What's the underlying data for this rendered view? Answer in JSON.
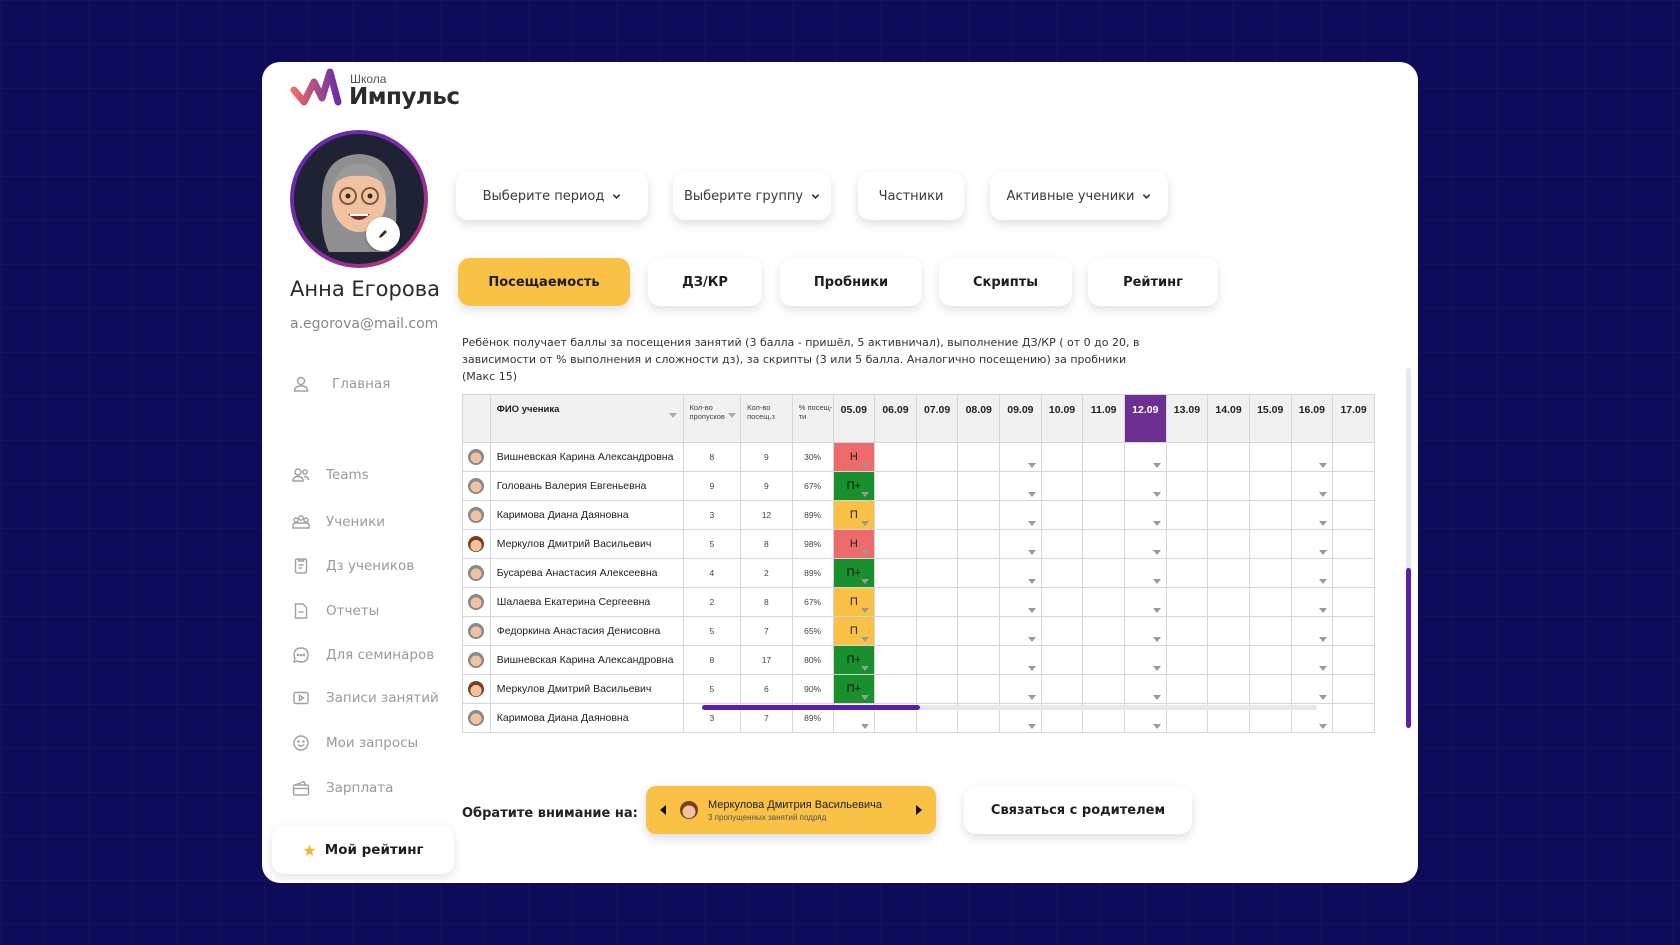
{
  "brand": {
    "small": "Школа",
    "name": "Импульс",
    "accent": "#6b3091"
  },
  "profile": {
    "name": "Анна Егорова",
    "email": "a.egorova@mail.com"
  },
  "sidebar": {
    "items": [
      {
        "label": "Главная",
        "icon": "user-icon"
      },
      {
        "label": "Teams",
        "icon": "team-icon"
      },
      {
        "label": "Ученики",
        "icon": "students-icon"
      },
      {
        "label": "Дз учеников",
        "icon": "clipboard-icon"
      },
      {
        "label": "Отчеты",
        "icon": "document-icon"
      },
      {
        "label": "Для семинаров",
        "icon": "chat-icon"
      },
      {
        "label": "Записи занятий",
        "icon": "video-icon"
      },
      {
        "label": "Мои запросы",
        "icon": "smile-icon"
      },
      {
        "label": "Зарплата",
        "icon": "wallet-icon"
      }
    ],
    "rating_button": "Мой рейтинг"
  },
  "filters": {
    "period": "Выберите период",
    "group": "Выберите группу",
    "private": "Частники",
    "active": "Активные ученики"
  },
  "tabs": [
    {
      "label": "Посещаемость",
      "active": true
    },
    {
      "label": "ДЗ/КР",
      "active": false
    },
    {
      "label": "Пробники",
      "active": false
    },
    {
      "label": "Скрипты",
      "active": false
    },
    {
      "label": "Рейтинг",
      "active": false
    }
  ],
  "description": "Ребёнок получает баллы за посещения занятий (3 балла - пришёл, 5 активничал), выполнение ДЗ/КР  ( от 0 до 20, в зависимости от % выполнения и сложности дз), за скрипты (3 или 5 балла. Аналогично посещению) за пробники (Макс 15)",
  "table": {
    "headers": {
      "name": "ФИО ученика",
      "missed": "Кол-во пропусков",
      "visits": "Кол-во посещ.з",
      "percent": "% посещ-ти"
    },
    "dates": [
      "05.09",
      "06.09",
      "07.09",
      "08.09",
      "09.09",
      "10.09",
      "11.09",
      "12.09",
      "13.09",
      "14.09",
      "15.09",
      "16.09",
      "17.09"
    ],
    "selected_date": "12.09",
    "rows": [
      {
        "name": "Вишневская Карина Александровна",
        "missed": "8",
        "visits": "9",
        "percent": "30%",
        "mark": "Н",
        "gender": "f"
      },
      {
        "name": "Головань Валерия Евгеньевна",
        "missed": "9",
        "visits": "9",
        "percent": "67%",
        "mark": "П+",
        "gender": "f"
      },
      {
        "name": "Каримова Диана Даяновна",
        "missed": "3",
        "visits": "12",
        "percent": "89%",
        "mark": "П",
        "gender": "f"
      },
      {
        "name": "Меркулов Дмитрий Васильевич",
        "missed": "5",
        "visits": "8",
        "percent": "98%",
        "mark": "Н",
        "gender": "m"
      },
      {
        "name": "Бусарева Анастасия Алексеевна",
        "missed": "4",
        "visits": "2",
        "percent": "89%",
        "mark": "П+",
        "gender": "f"
      },
      {
        "name": "Шалаева Екатерина Сергеевна",
        "missed": "2",
        "visits": "8",
        "percent": "67%",
        "mark": "П",
        "gender": "f"
      },
      {
        "name": "Федоркина Анастасия Денисовна",
        "missed": "5",
        "visits": "7",
        "percent": "65%",
        "mark": "П",
        "gender": "f"
      },
      {
        "name": "Вишневская Карина Александровна",
        "missed": "8",
        "visits": "17",
        "percent": "80%",
        "mark": "П+",
        "gender": "f"
      },
      {
        "name": "Меркулов Дмитрий Васильевич",
        "missed": "5",
        "visits": "6",
        "percent": "90%",
        "mark": "П+",
        "gender": "m"
      },
      {
        "name": "Каримова Диана Даяновна",
        "missed": "3",
        "visits": "7",
        "percent": "89%",
        "mark": "",
        "gender": "f"
      }
    ],
    "mark_colors": {
      "Н": "#ee6b6b",
      "П+": "#1a8f2e",
      "П": "#f9c146"
    }
  },
  "attention": {
    "label": "Обратите внимание на:",
    "student": "Меркулова Дмитрия  Васильевича",
    "reason": "3 пропущенных занятий подряд"
  },
  "contact_button": "Связаться с родителем",
  "scroll": {
    "horizontal_percent": 35,
    "vertical_percent": 55
  }
}
